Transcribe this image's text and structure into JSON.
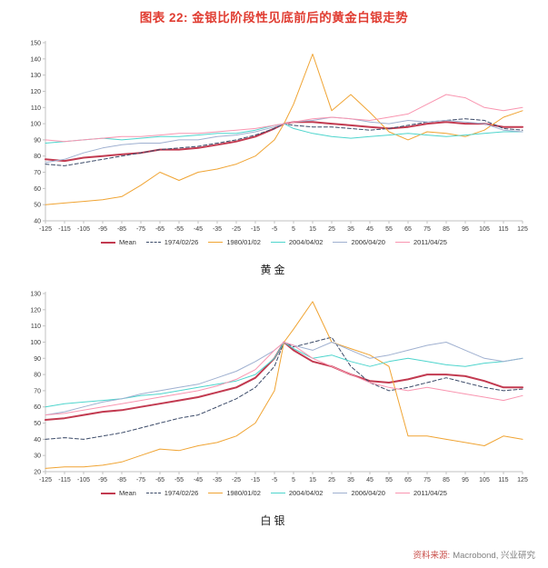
{
  "page": {
    "title": "图表 22: 金银比阶段性见底前后的黄金白银走势",
    "source": {
      "label": "资料来源:",
      "text": "Macrobond, 兴业研究"
    }
  },
  "colors": {
    "title": "#E03C31",
    "source_label": "#C9504B",
    "source_text": "#808080",
    "axis": "#c2c2c2",
    "tick_text": "#3c3c3c"
  },
  "chart_data": [
    {
      "id": "gold",
      "type": "line",
      "caption": "黄金",
      "xlim": [
        -125,
        125
      ],
      "ylim": [
        40,
        150
      ],
      "xticks": [
        -125,
        -115,
        -105,
        -95,
        -85,
        -75,
        -65,
        -55,
        -45,
        -35,
        -25,
        -15,
        -5,
        5,
        15,
        25,
        35,
        45,
        55,
        65,
        75,
        85,
        95,
        105,
        115,
        125
      ],
      "yticks": [
        40,
        50,
        60,
        70,
        80,
        90,
        100,
        110,
        120,
        130,
        140,
        150
      ],
      "x": [
        -125,
        -115,
        -105,
        -95,
        -85,
        -75,
        -65,
        -55,
        -45,
        -35,
        -25,
        -15,
        -5,
        0,
        5,
        15,
        25,
        35,
        45,
        55,
        65,
        75,
        85,
        95,
        105,
        115,
        125
      ],
      "series": [
        {
          "name": "Mean",
          "color": "#C23A50",
          "width": 2,
          "dash": "",
          "values": [
            78,
            77,
            79,
            80,
            81,
            82,
            84,
            84,
            85,
            87,
            89,
            92,
            97,
            100,
            101,
            101,
            100,
            99,
            98,
            97,
            98,
            100,
            101,
            100,
            100,
            98,
            98
          ]
        },
        {
          "name": "1974/02/26",
          "color": "#3B4A68",
          "width": 1,
          "dash": "4,2.5",
          "values": [
            75,
            74,
            76,
            78,
            80,
            82,
            84,
            85,
            86,
            88,
            90,
            93,
            97,
            100,
            99,
            98,
            98,
            97,
            96,
            97,
            99,
            101,
            102,
            103,
            102,
            97,
            96
          ]
        },
        {
          "name": "1980/01/02",
          "color": "#F0A433",
          "width": 1,
          "dash": "",
          "values": [
            50,
            51,
            52,
            53,
            55,
            62,
            70,
            65,
            70,
            72,
            75,
            80,
            90,
            100,
            112,
            143,
            108,
            118,
            107,
            95,
            90,
            95,
            94,
            92,
            96,
            104,
            108
          ]
        },
        {
          "name": "2004/04/02",
          "color": "#4ED5CD",
          "width": 1,
          "dash": "",
          "values": [
            88,
            89,
            90,
            91,
            90,
            91,
            92,
            92,
            93,
            94,
            94,
            96,
            99,
            100,
            97,
            94,
            92,
            91,
            92,
            93,
            94,
            93,
            92,
            93,
            94,
            95,
            95
          ]
        },
        {
          "name": "2006/04/20",
          "color": "#9FB0D0",
          "width": 1,
          "dash": "",
          "values": [
            76,
            78,
            82,
            85,
            87,
            88,
            88,
            90,
            90,
            92,
            93,
            95,
            98,
            100,
            101,
            102,
            104,
            103,
            101,
            100,
            102,
            101,
            102,
            101,
            100,
            96,
            95
          ]
        },
        {
          "name": "2011/04/25",
          "color": "#F995B0",
          "width": 1,
          "dash": "",
          "values": [
            90,
            89,
            90,
            91,
            92,
            92,
            93,
            94,
            94,
            95,
            96,
            97,
            99,
            100,
            101,
            103,
            104,
            103,
            102,
            104,
            106,
            112,
            118,
            116,
            110,
            108,
            110
          ]
        }
      ]
    },
    {
      "id": "silver",
      "type": "line",
      "caption": "白银",
      "xlim": [
        -125,
        125
      ],
      "ylim": [
        20,
        130
      ],
      "xticks": [
        -125,
        -115,
        -105,
        -95,
        -85,
        -75,
        -65,
        -55,
        -45,
        -35,
        -25,
        -15,
        -5,
        5,
        15,
        25,
        35,
        45,
        55,
        65,
        75,
        85,
        95,
        105,
        115,
        125
      ],
      "yticks": [
        20,
        30,
        40,
        50,
        60,
        70,
        80,
        90,
        100,
        110,
        120,
        130
      ],
      "x": [
        -125,
        -115,
        -105,
        -95,
        -85,
        -75,
        -65,
        -55,
        -45,
        -35,
        -25,
        -15,
        -5,
        0,
        5,
        15,
        25,
        35,
        45,
        55,
        65,
        75,
        85,
        95,
        105,
        115,
        125
      ],
      "series": [
        {
          "name": "Mean",
          "color": "#C23A50",
          "width": 2,
          "dash": "",
          "values": [
            52,
            53,
            55,
            57,
            58,
            60,
            62,
            64,
            66,
            69,
            72,
            78,
            90,
            100,
            95,
            88,
            85,
            80,
            76,
            75,
            77,
            80,
            80,
            79,
            76,
            72,
            72
          ]
        },
        {
          "name": "1974/02/26",
          "color": "#3B4A68",
          "width": 1,
          "dash": "4,2.5",
          "values": [
            40,
            41,
            40,
            42,
            44,
            47,
            50,
            53,
            55,
            60,
            65,
            72,
            85,
            100,
            97,
            100,
            103,
            85,
            75,
            70,
            72,
            75,
            78,
            75,
            72,
            70,
            71
          ]
        },
        {
          "name": "1980/01/02",
          "color": "#F0A433",
          "width": 1,
          "dash": "",
          "values": [
            22,
            23,
            23,
            24,
            26,
            30,
            34,
            33,
            36,
            38,
            42,
            50,
            70,
            100,
            108,
            125,
            100,
            96,
            92,
            85,
            42,
            42,
            40,
            38,
            36,
            42,
            40
          ]
        },
        {
          "name": "2004/04/02",
          "color": "#4ED5CD",
          "width": 1,
          "dash": "",
          "values": [
            60,
            62,
            63,
            64,
            65,
            67,
            68,
            70,
            72,
            74,
            76,
            80,
            90,
            100,
            96,
            90,
            92,
            88,
            85,
            88,
            90,
            88,
            86,
            85,
            87,
            88,
            90
          ]
        },
        {
          "name": "2006/04/20",
          "color": "#9FB0D0",
          "width": 1,
          "dash": "",
          "values": [
            55,
            57,
            60,
            63,
            65,
            68,
            70,
            72,
            74,
            78,
            82,
            88,
            95,
            100,
            98,
            95,
            100,
            95,
            90,
            92,
            95,
            98,
            100,
            95,
            90,
            88,
            90
          ]
        },
        {
          "name": "2011/04/25",
          "color": "#F995B0",
          "width": 1,
          "dash": "",
          "values": [
            55,
            56,
            58,
            60,
            62,
            64,
            66,
            68,
            70,
            73,
            77,
            83,
            95,
            100,
            98,
            90,
            85,
            80,
            75,
            72,
            70,
            72,
            70,
            68,
            66,
            64,
            67
          ]
        }
      ]
    }
  ]
}
